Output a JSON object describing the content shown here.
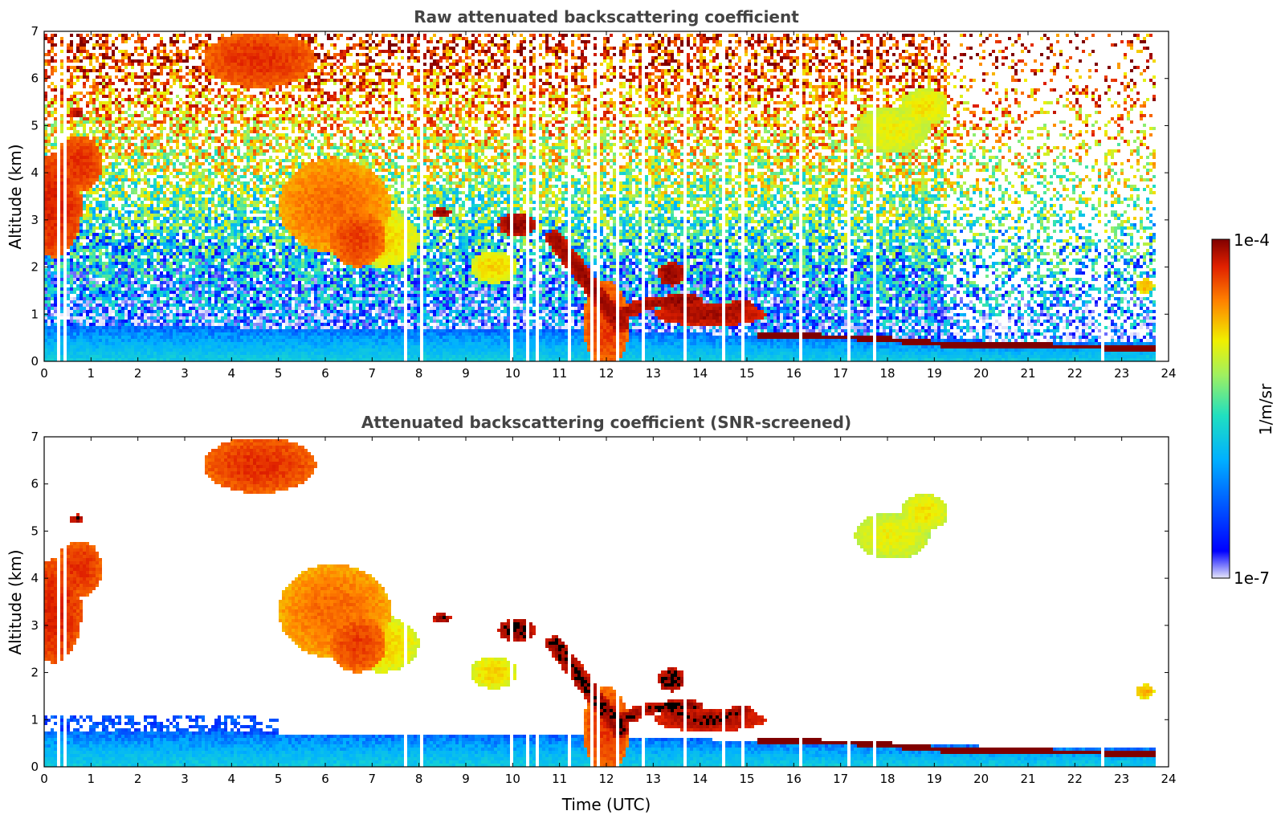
{
  "chart_data": [
    {
      "type": "heatmap",
      "title": "Raw attenuated backscattering coefficient",
      "xlabel": "",
      "ylabel": "Altitude (km)",
      "xlim": [
        0,
        24
      ],
      "ylim": [
        0,
        7
      ],
      "xticks": [
        "0",
        "1",
        "2",
        "3",
        "4",
        "5",
        "6",
        "7",
        "8",
        "9",
        "10",
        "11",
        "12",
        "13",
        "14",
        "15",
        "16",
        "17",
        "18",
        "19",
        "20",
        "21",
        "22",
        "23",
        "24"
      ],
      "yticks": [
        "0",
        "1",
        "2",
        "3",
        "4",
        "5",
        "6",
        "7"
      ],
      "features": [
        {
          "name": "boundary layer",
          "t": [
            0,
            12,
            15.2,
            19.3,
            23.7
          ],
          "top_km": [
            0.75,
            0.65,
            0.55,
            0.45,
            0.4
          ],
          "level": "low"
        },
        {
          "name": "low cloud",
          "t": [
            15.2,
            17.5,
            19.3,
            23.7
          ],
          "alt_km": [
            0.55,
            0.5,
            0.35,
            0.28
          ],
          "level": "max"
        },
        {
          "name": "descending cloud",
          "t": [
            11.0,
            12.0,
            15.0
          ],
          "alt_km": [
            2.6,
            0.8,
            1.1
          ],
          "level": "max"
        },
        {
          "name": "early cloud",
          "t": [
            0.0,
            0.6,
            1.1
          ],
          "alt_km": [
            3.5,
            4.0,
            4.4
          ],
          "level": "high"
        },
        {
          "name": "mid-level cloud",
          "t": [
            5.8,
            7.5
          ],
          "alt_km": [
            3.8,
            2.4
          ],
          "level": "high"
        },
        {
          "name": "upper cloud",
          "t": [
            17.5,
            19.0
          ],
          "alt_km": [
            5.2,
            5.5
          ],
          "level": "mid"
        }
      ]
    },
    {
      "type": "heatmap",
      "title": "Attenuated backscattering coefficient (SNR-screened)",
      "xlabel": "Time (UTC)",
      "ylabel": "Altitude (km)",
      "xlim": [
        0,
        24
      ],
      "ylim": [
        0,
        7
      ],
      "xticks": [
        "0",
        "1",
        "2",
        "3",
        "4",
        "5",
        "6",
        "7",
        "8",
        "9",
        "10",
        "11",
        "12",
        "13",
        "14",
        "15",
        "16",
        "17",
        "18",
        "19",
        "20",
        "21",
        "22",
        "23",
        "24"
      ],
      "yticks": [
        "0",
        "1",
        "2",
        "3",
        "4",
        "5",
        "6",
        "7"
      ],
      "screened": true
    }
  ],
  "colorbar": {
    "max_label": "1e-4",
    "min_label": "1e-7",
    "unit_label": "1/m/sr",
    "colors": [
      "#e6e6fa",
      "#0000ff",
      "#00b0ff",
      "#20e0c0",
      "#a0f060",
      "#f0f000",
      "#ff8000",
      "#e02000",
      "#800000"
    ]
  }
}
